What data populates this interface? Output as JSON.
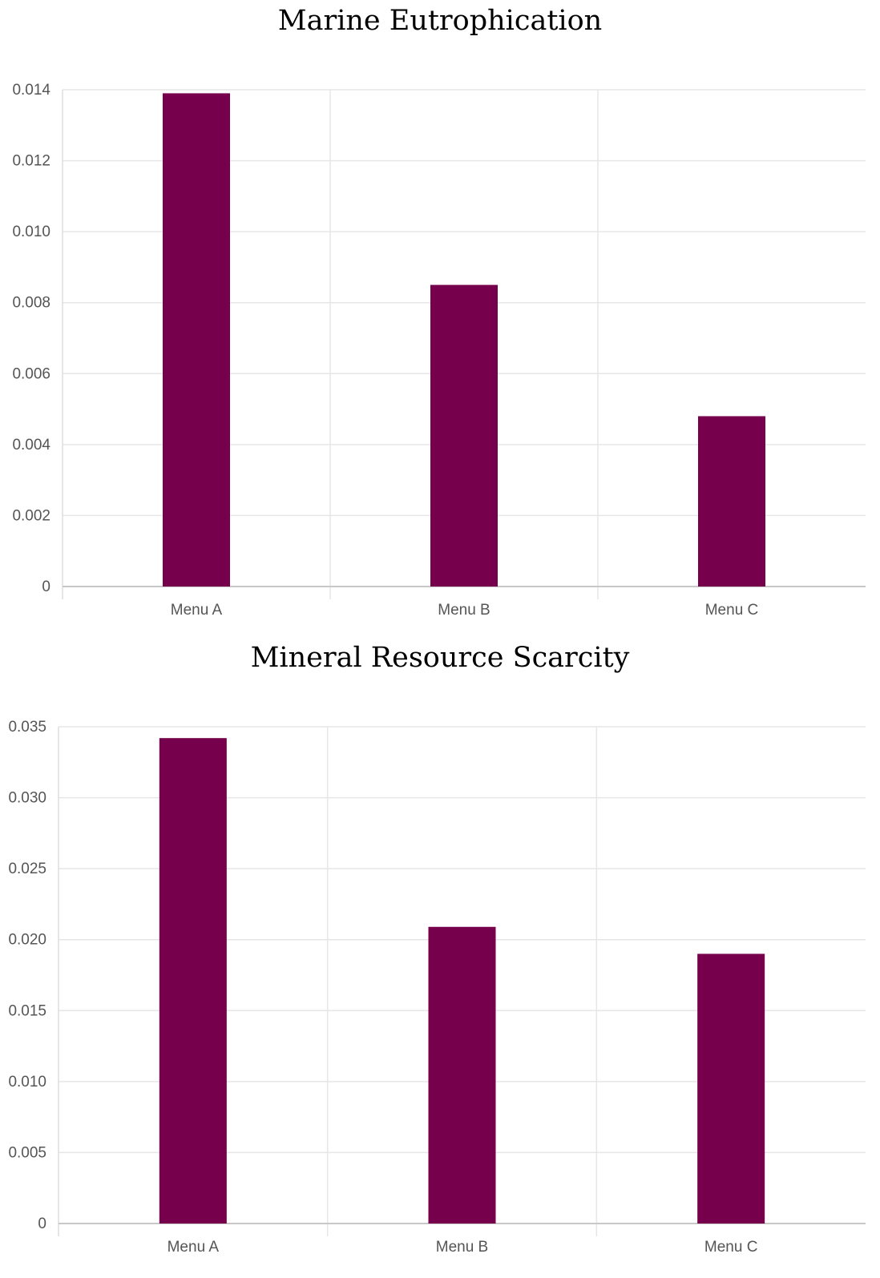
{
  "chart_data": [
    {
      "type": "bar",
      "title": "Marine Eutrophication",
      "categories": [
        "Menu A",
        "Menu B",
        "Menu C"
      ],
      "values": [
        0.0139,
        0.0085,
        0.0048
      ],
      "ylim": [
        0,
        0.014
      ],
      "yticks": [
        "0",
        "0.002",
        "0.004",
        "0.006",
        "0.008",
        "0.010",
        "0.012",
        "0.014"
      ],
      "grid": true,
      "bar_color": "#76004c"
    },
    {
      "type": "bar",
      "title": "Mineral Resource Scarcity",
      "categories": [
        "Menu A",
        "Menu B",
        "Menu C"
      ],
      "values": [
        0.0342,
        0.0209,
        0.019
      ],
      "ylim": [
        0,
        0.035
      ],
      "yticks": [
        "0",
        "0.005",
        "0.010",
        "0.015",
        "0.020",
        "0.025",
        "0.030",
        "0.035"
      ],
      "grid": true,
      "bar_color": "#76004c"
    }
  ]
}
